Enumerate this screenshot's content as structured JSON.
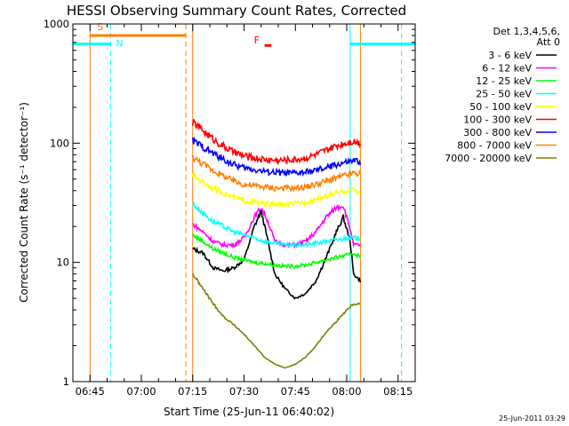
{
  "chart_data": {
    "type": "line",
    "title": "HESSI Observing Summary Count Rates, Corrected",
    "xlabel": "Start Time (25-Jun-11 06:40:02)",
    "ylabel": "Corrected Count Rate (s⁻¹ detector⁻¹)",
    "yscale": "log",
    "ylim": [
      1,
      1000
    ],
    "xlim": [
      "06:40",
      "08:20"
    ],
    "x_ticks": [
      "06:45",
      "07:00",
      "07:15",
      "07:30",
      "07:45",
      "08:00",
      "08:15"
    ],
    "y_ticks": [
      "1",
      "10",
      "100",
      "1000"
    ],
    "legend_header": [
      "Det 1,3,4,5,6,",
      "Att 0"
    ],
    "legend_position": "right",
    "series": [
      {
        "name": "3 - 6 keV",
        "color": "#000000",
        "points": [
          [
            "07:15",
            13
          ],
          [
            "07:18",
            12
          ],
          [
            "07:21",
            9
          ],
          [
            "07:24",
            8.5
          ],
          [
            "07:27",
            9
          ],
          [
            "07:30",
            10.5
          ],
          [
            "07:33",
            20
          ],
          [
            "07:35",
            27
          ],
          [
            "07:37",
            15
          ],
          [
            "07:39",
            8
          ],
          [
            "07:42",
            6
          ],
          [
            "07:45",
            5
          ],
          [
            "07:48",
            5.5
          ],
          [
            "07:51",
            7
          ],
          [
            "07:54",
            11
          ],
          [
            "07:57",
            18
          ],
          [
            "07:59",
            24
          ],
          [
            "08:01",
            15
          ],
          [
            "08:02",
            8
          ],
          [
            "08:04",
            7
          ]
        ]
      },
      {
        "name": "6 - 12 keV",
        "color": "#ff00ff",
        "points": [
          [
            "07:15",
            21
          ],
          [
            "07:18",
            18
          ],
          [
            "07:21",
            15
          ],
          [
            "07:24",
            14
          ],
          [
            "07:27",
            14
          ],
          [
            "07:30",
            16
          ],
          [
            "07:33",
            24
          ],
          [
            "07:35",
            29
          ],
          [
            "07:37",
            22
          ],
          [
            "07:39",
            15
          ],
          [
            "07:42",
            14
          ],
          [
            "07:45",
            14
          ],
          [
            "07:48",
            15
          ],
          [
            "07:51",
            18
          ],
          [
            "07:54",
            24
          ],
          [
            "07:57",
            29
          ],
          [
            "07:59",
            30
          ],
          [
            "08:01",
            19
          ],
          [
            "08:02",
            14
          ],
          [
            "08:04",
            14
          ]
        ]
      },
      {
        "name": "12 - 25 keV",
        "color": "#00ff00",
        "points": [
          [
            "07:15",
            17
          ],
          [
            "07:18",
            15
          ],
          [
            "07:21",
            13
          ],
          [
            "07:24",
            12
          ],
          [
            "07:27",
            11
          ],
          [
            "07:30",
            10.5
          ],
          [
            "07:33",
            10
          ],
          [
            "07:36",
            9.8
          ],
          [
            "07:39",
            9.5
          ],
          [
            "07:42",
            9.3
          ],
          [
            "07:45",
            9.3
          ],
          [
            "07:48",
            9.5
          ],
          [
            "07:51",
            10
          ],
          [
            "07:54",
            10.5
          ],
          [
            "07:57",
            11
          ],
          [
            "08:00",
            11.5
          ],
          [
            "08:02",
            12
          ],
          [
            "08:04",
            11
          ]
        ]
      },
      {
        "name": "25 - 50 keV",
        "color": "#00ffff",
        "points": [
          [
            "07:15",
            31
          ],
          [
            "07:18",
            26
          ],
          [
            "07:21",
            22
          ],
          [
            "07:24",
            20
          ],
          [
            "07:27",
            18
          ],
          [
            "07:30",
            17
          ],
          [
            "07:33",
            16
          ],
          [
            "07:36",
            15
          ],
          [
            "07:39",
            14.5
          ],
          [
            "07:42",
            14
          ],
          [
            "07:45",
            14
          ],
          [
            "07:48",
            14
          ],
          [
            "07:51",
            14.5
          ],
          [
            "07:54",
            15
          ],
          [
            "07:57",
            15.5
          ],
          [
            "08:00",
            16
          ],
          [
            "08:02",
            16
          ],
          [
            "08:04",
            16
          ]
        ]
      },
      {
        "name": "50 - 100 keV",
        "color": "#ffff00",
        "points": [
          [
            "07:15",
            54
          ],
          [
            "07:18",
            47
          ],
          [
            "07:21",
            42
          ],
          [
            "07:24",
            38
          ],
          [
            "07:27",
            35
          ],
          [
            "07:30",
            33
          ],
          [
            "07:33",
            32
          ],
          [
            "07:36",
            31
          ],
          [
            "07:39",
            30.5
          ],
          [
            "07:42",
            30.5
          ],
          [
            "07:45",
            31
          ],
          [
            "07:48",
            32
          ],
          [
            "07:51",
            34
          ],
          [
            "07:54",
            36
          ],
          [
            "07:57",
            38
          ],
          [
            "08:00",
            40
          ],
          [
            "08:02",
            41
          ],
          [
            "08:04",
            38
          ]
        ]
      },
      {
        "name": "100 - 300 keV",
        "color": "#ff0000",
        "points": [
          [
            "07:15",
            150
          ],
          [
            "07:18",
            128
          ],
          [
            "07:21",
            108
          ],
          [
            "07:24",
            94
          ],
          [
            "07:27",
            84
          ],
          [
            "07:30",
            78
          ],
          [
            "07:33",
            75
          ],
          [
            "07:36",
            73
          ],
          [
            "07:39",
            72
          ],
          [
            "07:42",
            72
          ],
          [
            "07:45",
            73
          ],
          [
            "07:48",
            75
          ],
          [
            "07:51",
            80
          ],
          [
            "07:54",
            87
          ],
          [
            "07:57",
            95
          ],
          [
            "08:00",
            101
          ],
          [
            "08:02",
            104
          ],
          [
            "08:04",
            100
          ]
        ]
      },
      {
        "name": "300 - 800 keV",
        "color": "#0000ff",
        "points": [
          [
            "07:15",
            105
          ],
          [
            "07:18",
            93
          ],
          [
            "07:21",
            82
          ],
          [
            "07:24",
            73
          ],
          [
            "07:27",
            66
          ],
          [
            "07:30",
            62
          ],
          [
            "07:33",
            60
          ],
          [
            "07:36",
            58
          ],
          [
            "07:39",
            57
          ],
          [
            "07:42",
            56
          ],
          [
            "07:45",
            56
          ],
          [
            "07:48",
            57
          ],
          [
            "07:51",
            59
          ],
          [
            "07:54",
            62
          ],
          [
            "07:57",
            66
          ],
          [
            "08:00",
            69
          ],
          [
            "08:02",
            71
          ],
          [
            "08:04",
            70
          ]
        ]
      },
      {
        "name": "800 - 7000 keV",
        "color": "#ff8000",
        "points": [
          [
            "07:15",
            76
          ],
          [
            "07:18",
            67
          ],
          [
            "07:21",
            59
          ],
          [
            "07:24",
            53
          ],
          [
            "07:27",
            48
          ],
          [
            "07:30",
            45
          ],
          [
            "07:33",
            44
          ],
          [
            "07:36",
            43
          ],
          [
            "07:39",
            42
          ],
          [
            "07:42",
            42
          ],
          [
            "07:45",
            42
          ],
          [
            "07:48",
            43
          ],
          [
            "07:51",
            45
          ],
          [
            "07:54",
            48
          ],
          [
            "07:57",
            51
          ],
          [
            "08:00",
            54
          ],
          [
            "08:02",
            56
          ],
          [
            "08:04",
            55
          ]
        ]
      },
      {
        "name": "7000 - 20000 keV",
        "color": "#808000",
        "points": [
          [
            "07:15",
            8
          ],
          [
            "07:18",
            6
          ],
          [
            "07:21",
            4.5
          ],
          [
            "07:24",
            3.5
          ],
          [
            "07:27",
            3
          ],
          [
            "07:30",
            2.5
          ],
          [
            "07:33",
            2
          ],
          [
            "07:36",
            1.6
          ],
          [
            "07:39",
            1.4
          ],
          [
            "07:42",
            1.3
          ],
          [
            "07:45",
            1.4
          ],
          [
            "07:48",
            1.6
          ],
          [
            "07:51",
            2
          ],
          [
            "07:54",
            2.6
          ],
          [
            "07:57",
            3.2
          ],
          [
            "08:00",
            4
          ],
          [
            "08:02",
            4.5
          ],
          [
            "08:04",
            4.5
          ]
        ]
      }
    ],
    "flags": [
      {
        "label": "S",
        "color": "#ff8000",
        "start": "06:45",
        "end": "07:13",
        "level": 800
      },
      {
        "label": "N",
        "color": "#00ffff",
        "start": "06:40",
        "end": "06:51",
        "level": 680
      },
      {
        "label": "N",
        "color": "#00ffff",
        "start": "08:01",
        "end": "08:20",
        "level": 680
      },
      {
        "label": "F",
        "color": "#ff0000",
        "start": "07:36",
        "end": "07:38",
        "level": 660
      }
    ],
    "vertical_markers": [
      {
        "color": "#00ffff",
        "style": "dashed",
        "x": "06:51"
      },
      {
        "color": "#ff8000",
        "style": "dashed",
        "x": "07:13"
      },
      {
        "color": "#00ffff",
        "style": "dashed",
        "x": "08:16"
      },
      {
        "color": "#ff8000",
        "style": "solid",
        "x": "06:45"
      },
      {
        "color": "#ff8000",
        "style": "solid",
        "x": "07:15"
      },
      {
        "color": "#ff8000",
        "style": "solid",
        "x": "08:04"
      },
      {
        "color": "#00ffff",
        "style": "solid",
        "x": "08:01"
      }
    ],
    "grid": false
  },
  "footer": {
    "stamp": "25-Jun-2011 03:29"
  }
}
